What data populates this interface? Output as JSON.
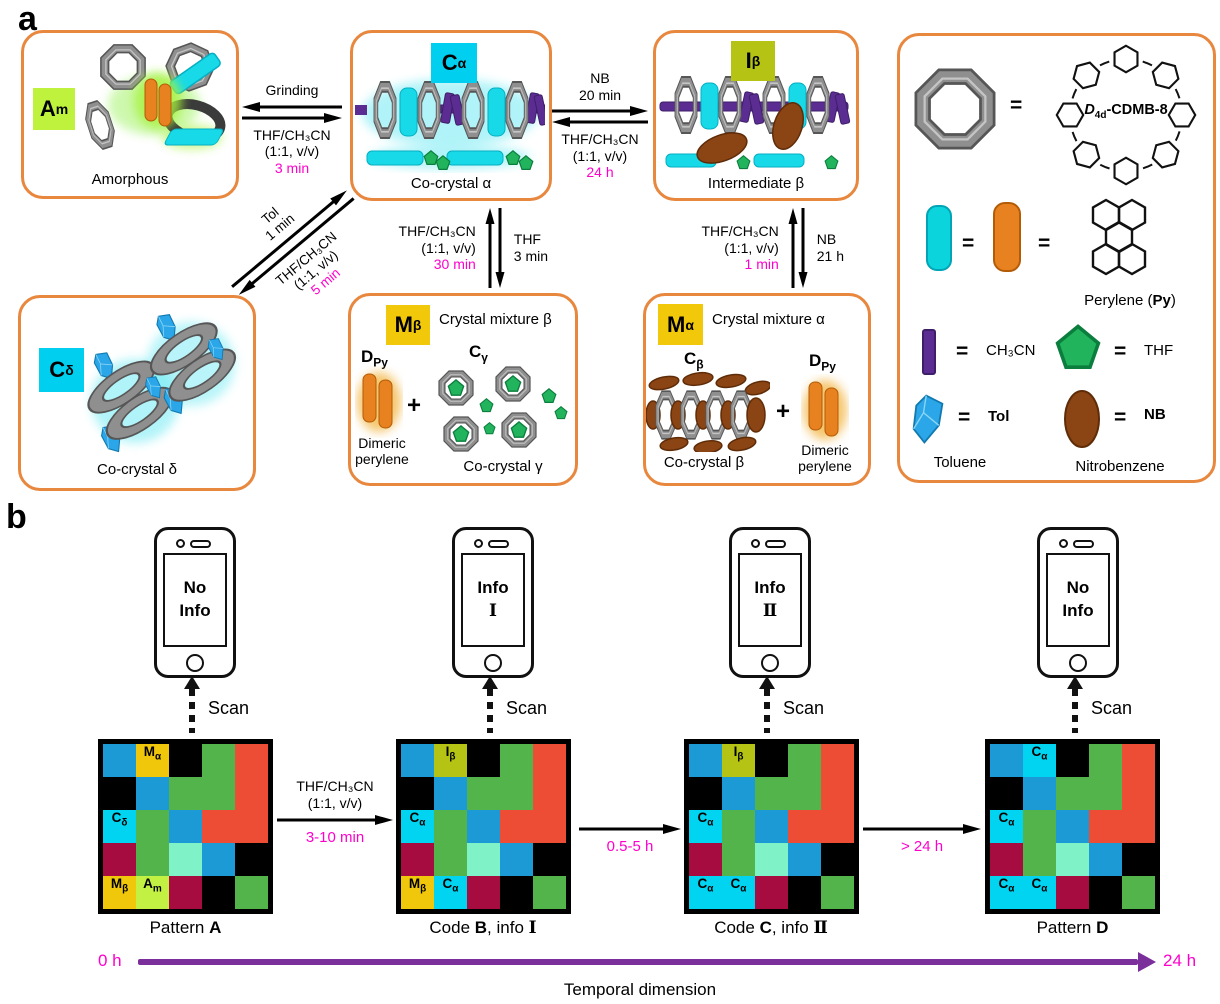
{
  "panel_a": {
    "label": "a",
    "boxes": {
      "am": {
        "tag": {
          "main": "A",
          "sub": "m"
        },
        "caption": "Amorphous"
      },
      "ca": {
        "tag": {
          "main": "C",
          "sub": "α"
        },
        "caption": "Co-crystal α"
      },
      "ib": {
        "tag": {
          "main": "I",
          "sub": "β"
        },
        "caption": "Intermediate β"
      },
      "cd": {
        "tag": {
          "main": "C",
          "sub": "δ"
        },
        "caption": "Co-crystal δ"
      },
      "mb": {
        "tag": {
          "main": "M",
          "sub": "β"
        },
        "title": "Crystal mixture β",
        "plus": "+",
        "dpy": {
          "tag": {
            "main": "D",
            "sub": "Py"
          },
          "caption1": "Dimeric",
          "caption2": "perylene"
        },
        "cg": {
          "tag": {
            "main": "C",
            "sub": "γ"
          },
          "caption": "Co-crystal γ"
        }
      },
      "ma": {
        "tag": {
          "main": "M",
          "sub": "α"
        },
        "title": "Crystal mixture α",
        "plus": "+",
        "cb": {
          "tag": {
            "main": "C",
            "sub": "β"
          },
          "caption": "Co-crystal β"
        },
        "dpy": {
          "tag": {
            "main": "D",
            "sub": "Py"
          },
          "caption1": "Dimeric",
          "caption2": "perylene"
        }
      }
    },
    "reactions": {
      "grinding": {
        "top": "Grinding",
        "solvent": "THF/CH₃CN",
        "ratio": "(1:1, v/v)",
        "time": "3 min"
      },
      "nb_eq": {
        "top1": "NB",
        "top2": "20 min",
        "solvent": "THF/CH₃CN",
        "ratio": "(1:1, v/v)",
        "time": "24 h"
      },
      "tol_diag": {
        "top1": "Tol",
        "top2": "1 min",
        "solvent": "THF/CH₃CN",
        "ratio": "(1:1, v/v)",
        "time": "5 min"
      },
      "thf_vert": {
        "solvent": "THF/CH₃CN",
        "ratio": "(1:1, v/v)",
        "time": "30 min",
        "right1": "THF",
        "right2": "3 min"
      },
      "nb_vert": {
        "solvent": "THF/CH₃CN",
        "ratio": "(1:1, v/v)",
        "time": "1 min",
        "right1": "NB",
        "right2": "21 h"
      }
    },
    "legend": {
      "macrocycle": {
        "eq": "=",
        "name_prefix": "D",
        "name_sub": "4d",
        "name_rest": "-CDMB-8"
      },
      "perylene": {
        "eq1": "=",
        "eq2": "=",
        "cap_pre": "Perylene (",
        "cap_bold": "Py",
        "cap_post": ")"
      },
      "ch3cn": {
        "eq": "=",
        "label": "CH₃CN"
      },
      "thf": {
        "eq": "=",
        "label": "THF"
      },
      "tol": {
        "eq": "=",
        "short": "Tol",
        "caption": "Toluene"
      },
      "nb": {
        "eq": "=",
        "short": "NB",
        "caption": "Nitrobenzene"
      }
    }
  },
  "panel_b": {
    "label": "b",
    "scan": "Scan",
    "phones": [
      {
        "line1": "No",
        "line2": "Info"
      },
      {
        "line1": "Info",
        "line2": "Ⅰ"
      },
      {
        "line1": "Info",
        "line2": "Ⅱ"
      },
      {
        "line1": "No",
        "line2": "Info"
      }
    ],
    "palette": {
      "K": "#000000",
      "B": "#1B9AD5",
      "G": "#54B44C",
      "R": "#EE4D35",
      "C": "#00D4F0",
      "Y": "#F0C70A",
      "M": "#A60C3F",
      "A": "#80F2C8",
      "L": "#C2F143",
      "O": "#B5C414"
    },
    "grids": [
      {
        "caption": {
          "prefix": "Pattern ",
          "letter": "A",
          "infix": "",
          "roman": ""
        },
        "cells": [
          [
            "B",
            "Y",
            "K",
            "G",
            "R"
          ],
          [
            "K",
            "B",
            "G",
            "G",
            "R"
          ],
          [
            "C",
            "G",
            "B",
            "R",
            "R"
          ],
          [
            "M",
            "G",
            "A",
            "B",
            "K"
          ],
          [
            "Y",
            "L",
            "M",
            "K",
            "G"
          ]
        ],
        "labels": [
          {
            "r": 0,
            "c": 1,
            "main": "M",
            "sub": "α"
          },
          {
            "r": 2,
            "c": 0,
            "main": "C",
            "sub": "δ"
          },
          {
            "r": 4,
            "c": 0,
            "main": "M",
            "sub": "β"
          },
          {
            "r": 4,
            "c": 1,
            "main": "A",
            "sub": "m"
          }
        ]
      },
      {
        "caption": {
          "prefix": "Code ",
          "letter": "B",
          "infix": ", info ",
          "roman": "Ⅰ"
        },
        "cells": [
          [
            "B",
            "O",
            "K",
            "G",
            "R"
          ],
          [
            "K",
            "B",
            "G",
            "G",
            "R"
          ],
          [
            "C",
            "G",
            "B",
            "R",
            "R"
          ],
          [
            "M",
            "G",
            "A",
            "B",
            "K"
          ],
          [
            "Y",
            "C",
            "M",
            "K",
            "G"
          ]
        ],
        "labels": [
          {
            "r": 0,
            "c": 1,
            "main": "I",
            "sub": "β"
          },
          {
            "r": 2,
            "c": 0,
            "main": "C",
            "sub": "α"
          },
          {
            "r": 4,
            "c": 0,
            "main": "M",
            "sub": "β"
          },
          {
            "r": 4,
            "c": 1,
            "main": "C",
            "sub": "α"
          }
        ]
      },
      {
        "caption": {
          "prefix": "Code ",
          "letter": "C",
          "infix": ", info ",
          "roman": "Ⅱ"
        },
        "cells": [
          [
            "B",
            "O",
            "K",
            "G",
            "R"
          ],
          [
            "K",
            "B",
            "G",
            "G",
            "R"
          ],
          [
            "C",
            "G",
            "B",
            "R",
            "R"
          ],
          [
            "M",
            "G",
            "A",
            "B",
            "K"
          ],
          [
            "C",
            "C",
            "M",
            "K",
            "G"
          ]
        ],
        "labels": [
          {
            "r": 0,
            "c": 1,
            "main": "I",
            "sub": "β"
          },
          {
            "r": 2,
            "c": 0,
            "main": "C",
            "sub": "α"
          },
          {
            "r": 4,
            "c": 0,
            "main": "C",
            "sub": "α"
          },
          {
            "r": 4,
            "c": 1,
            "main": "C",
            "sub": "α"
          }
        ]
      },
      {
        "caption": {
          "prefix": "Pattern ",
          "letter": "D",
          "infix": "",
          "roman": ""
        },
        "cells": [
          [
            "B",
            "C",
            "K",
            "G",
            "R"
          ],
          [
            "K",
            "B",
            "G",
            "G",
            "R"
          ],
          [
            "C",
            "G",
            "B",
            "R",
            "R"
          ],
          [
            "M",
            "G",
            "A",
            "B",
            "K"
          ],
          [
            "C",
            "C",
            "M",
            "K",
            "G"
          ]
        ],
        "labels": [
          {
            "r": 0,
            "c": 1,
            "main": "C",
            "sub": "α"
          },
          {
            "r": 2,
            "c": 0,
            "main": "C",
            "sub": "α"
          },
          {
            "r": 4,
            "c": 0,
            "main": "C",
            "sub": "α"
          },
          {
            "r": 4,
            "c": 1,
            "main": "C",
            "sub": "α"
          }
        ]
      }
    ],
    "transitions": [
      {
        "line1": "THF/CH₃CN",
        "line2": "(1:1, v/v)",
        "time": "3-10 min"
      },
      {
        "time": "0.5-5 h"
      },
      {
        "time": "> 24 h"
      }
    ],
    "timeline": {
      "start": "0 h",
      "end": "24 h",
      "label": "Temporal dimension"
    }
  },
  "colors": {
    "accent_orange": "#E8873E",
    "magenta": "#FF00CC",
    "purple": "#7B2F9B",
    "cyan_label": "#00CFEF",
    "yellow_label": "#F2C90A",
    "lime_label": "#BFF23C",
    "olive_label": "#B5C414"
  }
}
